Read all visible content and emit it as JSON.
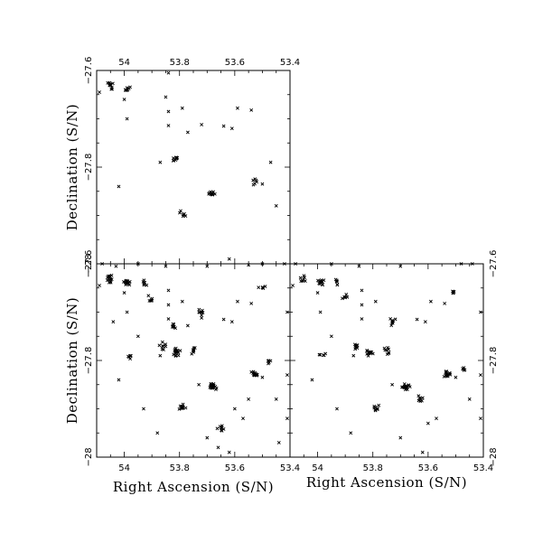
{
  "chart_data": [
    {
      "type": "scatter",
      "panel": "top-left",
      "xlim": [
        54.1,
        53.4
      ],
      "ylim": [
        -28.0,
        -27.6
      ],
      "x_ticks": [
        54,
        53.8,
        53.6,
        53.4
      ],
      "x_tick_labels": [
        "54",
        "53.8",
        "53.6",
        "53.4"
      ],
      "x_tick_labels_position": "top",
      "y_ticks": [
        -27.6,
        -27.8,
        -28.0
      ],
      "y_tick_labels": [
        "−27.6",
        "−27.8",
        "−28"
      ],
      "y_tick_labels_position": "left",
      "xlabel": "",
      "ylabel": "Declination (S/N)",
      "marker": "x",
      "clusters": [
        {
          "x": 54.05,
          "y": -27.632,
          "n": 12
        },
        {
          "x": 53.99,
          "y": -27.638,
          "n": 8
        },
        {
          "x": 53.81,
          "y": -27.783,
          "n": 9
        },
        {
          "x": 53.68,
          "y": -27.855,
          "n": 12
        },
        {
          "x": 53.53,
          "y": -27.83,
          "n": 6
        },
        {
          "x": 53.79,
          "y": -27.897,
          "n": 6
        }
      ],
      "points": [
        {
          "x": 54.09,
          "y": -27.645
        },
        {
          "x": 53.84,
          "y": -27.605
        },
        {
          "x": 53.85,
          "y": -27.655
        },
        {
          "x": 54.0,
          "y": -27.66
        },
        {
          "x": 53.84,
          "y": -27.685
        },
        {
          "x": 53.79,
          "y": -27.678
        },
        {
          "x": 53.59,
          "y": -27.678
        },
        {
          "x": 53.54,
          "y": -27.682
        },
        {
          "x": 53.99,
          "y": -27.7
        },
        {
          "x": 53.84,
          "y": -27.714
        },
        {
          "x": 53.72,
          "y": -27.712
        },
        {
          "x": 53.64,
          "y": -27.715
        },
        {
          "x": 53.61,
          "y": -27.72
        },
        {
          "x": 53.77,
          "y": -27.728
        },
        {
          "x": 53.87,
          "y": -27.79
        },
        {
          "x": 54.02,
          "y": -27.84
        },
        {
          "x": 53.5,
          "y": -27.835
        },
        {
          "x": 53.62,
          "y": -27.99
        },
        {
          "x": 53.45,
          "y": -27.88
        },
        {
          "x": 53.47,
          "y": -27.79
        }
      ]
    },
    {
      "type": "scatter",
      "panel": "bottom-left",
      "xlim": [
        54.1,
        53.4
      ],
      "ylim": [
        -28.0,
        -27.6
      ],
      "x_ticks": [
        54,
        53.8,
        53.6,
        53.4
      ],
      "x_tick_labels": [
        "54",
        "53.8",
        "53.6",
        "53.4"
      ],
      "x_tick_labels_position": "bottom",
      "y_ticks": [
        -27.6,
        -27.8,
        -28.0
      ],
      "y_tick_labels": [
        "−27.6",
        "−27.8",
        "−28"
      ],
      "y_tick_labels_position": "left",
      "xlabel": "Right Ascension (S/N)",
      "ylabel": "Declination (S/N)",
      "marker": "x",
      "clusters": [
        {
          "x": 54.05,
          "y": -27.632,
          "n": 14
        },
        {
          "x": 53.99,
          "y": -27.638,
          "n": 14
        },
        {
          "x": 53.93,
          "y": -27.64,
          "n": 6
        },
        {
          "x": 53.9,
          "y": -27.67,
          "n": 6
        },
        {
          "x": 53.82,
          "y": -27.73,
          "n": 8
        },
        {
          "x": 53.81,
          "y": -27.783,
          "n": 16
        },
        {
          "x": 53.86,
          "y": -27.77,
          "n": 8
        },
        {
          "x": 53.75,
          "y": -27.78,
          "n": 8
        },
        {
          "x": 53.72,
          "y": -27.7,
          "n": 8
        },
        {
          "x": 53.68,
          "y": -27.855,
          "n": 18
        },
        {
          "x": 53.53,
          "y": -27.83,
          "n": 14
        },
        {
          "x": 53.79,
          "y": -27.897,
          "n": 12
        },
        {
          "x": 53.65,
          "y": -27.94,
          "n": 8
        },
        {
          "x": 53.98,
          "y": -27.79,
          "n": 5
        },
        {
          "x": 53.5,
          "y": -27.65,
          "n": 5
        },
        {
          "x": 53.47,
          "y": -27.8,
          "n": 5
        }
      ],
      "points": [
        {
          "x": 54.09,
          "y": -27.645
        },
        {
          "x": 54.08,
          "y": -27.6
        },
        {
          "x": 54.03,
          "y": -27.605
        },
        {
          "x": 53.95,
          "y": -27.6
        },
        {
          "x": 53.85,
          "y": -27.605
        },
        {
          "x": 53.7,
          "y": -27.605
        },
        {
          "x": 53.55,
          "y": -27.602
        },
        {
          "x": 53.5,
          "y": -27.6
        },
        {
          "x": 53.42,
          "y": -27.6
        },
        {
          "x": 53.84,
          "y": -27.655
        },
        {
          "x": 54.0,
          "y": -27.66
        },
        {
          "x": 53.84,
          "y": -27.685
        },
        {
          "x": 53.79,
          "y": -27.678
        },
        {
          "x": 53.59,
          "y": -27.678
        },
        {
          "x": 53.54,
          "y": -27.682
        },
        {
          "x": 53.99,
          "y": -27.7
        },
        {
          "x": 53.84,
          "y": -27.714
        },
        {
          "x": 53.72,
          "y": -27.712
        },
        {
          "x": 53.64,
          "y": -27.715
        },
        {
          "x": 53.61,
          "y": -27.72
        },
        {
          "x": 53.77,
          "y": -27.728
        },
        {
          "x": 53.87,
          "y": -27.79
        },
        {
          "x": 54.02,
          "y": -27.84
        },
        {
          "x": 53.5,
          "y": -27.835
        },
        {
          "x": 53.62,
          "y": -27.99
        },
        {
          "x": 53.45,
          "y": -27.88
        },
        {
          "x": 53.93,
          "y": -27.9
        },
        {
          "x": 53.88,
          "y": -27.95
        },
        {
          "x": 53.7,
          "y": -27.96
        },
        {
          "x": 53.66,
          "y": -27.98
        },
        {
          "x": 53.57,
          "y": -27.92
        },
        {
          "x": 53.55,
          "y": -27.88
        },
        {
          "x": 53.6,
          "y": -27.9
        },
        {
          "x": 53.73,
          "y": -27.85
        },
        {
          "x": 53.95,
          "y": -27.75
        },
        {
          "x": 54.04,
          "y": -27.72
        },
        {
          "x": 53.41,
          "y": -27.7
        },
        {
          "x": 53.41,
          "y": -27.83
        },
        {
          "x": 53.41,
          "y": -27.92
        },
        {
          "x": 53.44,
          "y": -27.97
        }
      ]
    },
    {
      "type": "scatter",
      "panel": "bottom-right",
      "xlim": [
        54.1,
        53.4
      ],
      "ylim": [
        -28.0,
        -27.6
      ],
      "x_ticks": [
        54,
        53.8,
        53.6,
        53.4
      ],
      "x_tick_labels": [
        "54",
        "53.8",
        "53.6",
        "53.4"
      ],
      "x_tick_labels_position": "bottom",
      "y_ticks": [
        -27.6,
        -27.8,
        -28.0
      ],
      "y_tick_labels": [
        "−27.6",
        "−27.8",
        "−28"
      ],
      "y_tick_labels_position": "right",
      "xlabel": "Right Ascension (S/N)",
      "ylabel": "",
      "marker": "x",
      "clusters": [
        {
          "x": 54.05,
          "y": -27.632,
          "n": 8
        },
        {
          "x": 53.99,
          "y": -27.638,
          "n": 14
        },
        {
          "x": 53.93,
          "y": -27.64,
          "n": 6
        },
        {
          "x": 53.9,
          "y": -27.67,
          "n": 6
        },
        {
          "x": 53.81,
          "y": -27.783,
          "n": 16
        },
        {
          "x": 53.86,
          "y": -27.77,
          "n": 8
        },
        {
          "x": 53.75,
          "y": -27.78,
          "n": 8
        },
        {
          "x": 53.73,
          "y": -27.72,
          "n": 8
        },
        {
          "x": 53.68,
          "y": -27.855,
          "n": 16
        },
        {
          "x": 53.53,
          "y": -27.83,
          "n": 14
        },
        {
          "x": 53.79,
          "y": -27.897,
          "n": 8
        },
        {
          "x": 53.63,
          "y": -27.88,
          "n": 8
        },
        {
          "x": 53.98,
          "y": -27.79,
          "n": 5
        },
        {
          "x": 53.51,
          "y": -27.66,
          "n": 5
        },
        {
          "x": 53.47,
          "y": -27.82,
          "n": 5
        }
      ],
      "points": [
        {
          "x": 54.09,
          "y": -27.645
        },
        {
          "x": 54.08,
          "y": -27.6
        },
        {
          "x": 53.95,
          "y": -27.6
        },
        {
          "x": 53.85,
          "y": -27.605
        },
        {
          "x": 53.7,
          "y": -27.605
        },
        {
          "x": 53.48,
          "y": -27.6
        },
        {
          "x": 53.44,
          "y": -27.6
        },
        {
          "x": 53.84,
          "y": -27.655
        },
        {
          "x": 54.0,
          "y": -27.66
        },
        {
          "x": 53.84,
          "y": -27.685
        },
        {
          "x": 53.79,
          "y": -27.678
        },
        {
          "x": 53.59,
          "y": -27.678
        },
        {
          "x": 53.54,
          "y": -27.682
        },
        {
          "x": 53.99,
          "y": -27.7
        },
        {
          "x": 53.84,
          "y": -27.714
        },
        {
          "x": 53.64,
          "y": -27.715
        },
        {
          "x": 53.61,
          "y": -27.72
        },
        {
          "x": 53.87,
          "y": -27.79
        },
        {
          "x": 54.02,
          "y": -27.84
        },
        {
          "x": 53.5,
          "y": -27.835
        },
        {
          "x": 53.62,
          "y": -27.99
        },
        {
          "x": 53.45,
          "y": -27.88
        },
        {
          "x": 53.93,
          "y": -27.9
        },
        {
          "x": 53.88,
          "y": -27.95
        },
        {
          "x": 53.7,
          "y": -27.96
        },
        {
          "x": 53.57,
          "y": -27.92
        },
        {
          "x": 53.6,
          "y": -27.93
        },
        {
          "x": 53.73,
          "y": -27.85
        },
        {
          "x": 53.95,
          "y": -27.75
        },
        {
          "x": 53.41,
          "y": -27.7
        },
        {
          "x": 53.41,
          "y": -27.83
        },
        {
          "x": 53.41,
          "y": -27.92
        }
      ]
    }
  ]
}
